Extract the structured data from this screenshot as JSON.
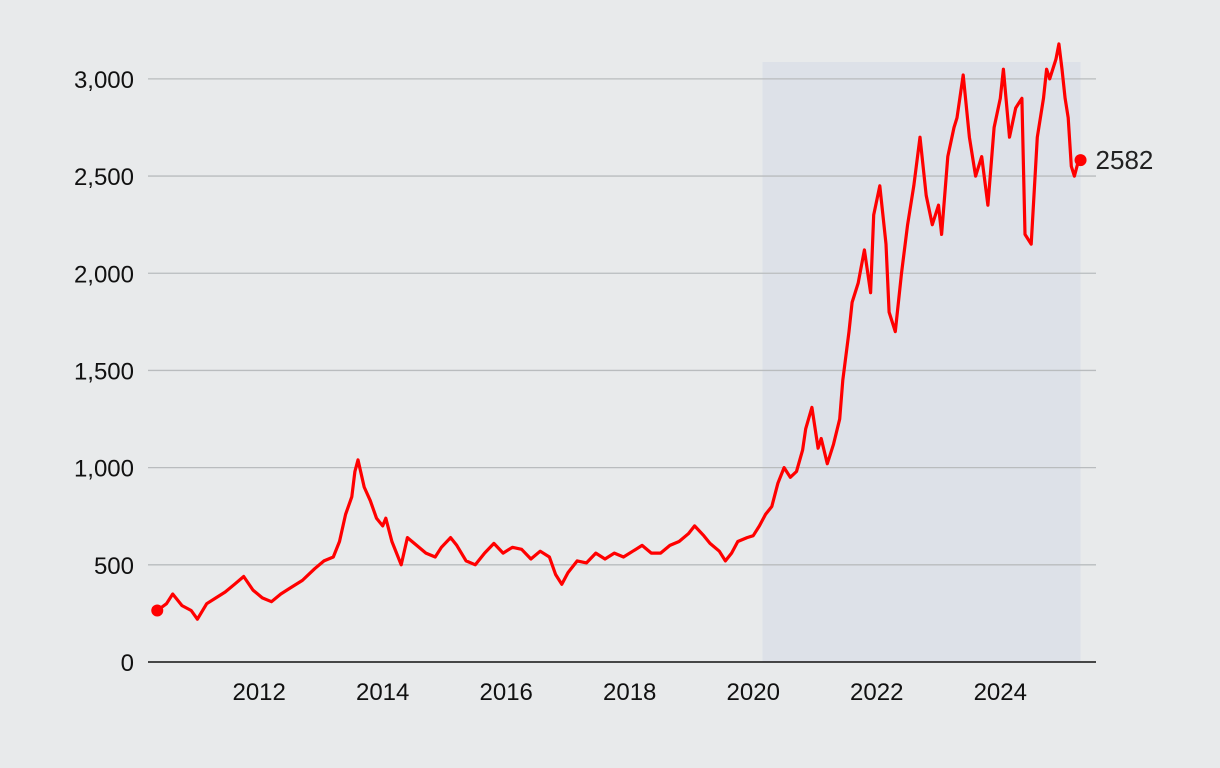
{
  "chart_data": {
    "type": "line",
    "title": "",
    "xlabel": "",
    "ylabel": "",
    "xlim": [
      2010.2,
      2025.55
    ],
    "ylim": [
      0,
      3200
    ],
    "x_ticks": [
      2012,
      2014,
      2016,
      2018,
      2020,
      2022,
      2024
    ],
    "x_tick_labels": [
      "2012",
      "2014",
      "2016",
      "2018",
      "2020",
      "2022",
      "2024"
    ],
    "y_ticks": [
      0,
      500,
      1000,
      1500,
      2000,
      2500,
      3000
    ],
    "y_tick_labels": [
      "0",
      "500",
      "1,000",
      "1,500",
      "2,000",
      "2,500",
      "3,000"
    ],
    "grid": "horizontal",
    "legend": "none",
    "shaded_region": {
      "x_start": 2020.15,
      "x_end": 2025.3,
      "color": "#dde1e8"
    },
    "colors": {
      "line": "#ff0000",
      "background": "#e8eaeb",
      "grid": "#b9bcbe",
      "axis": "#111111"
    },
    "end_label": "2582",
    "series": [
      {
        "color": "#ff0000",
        "x": [
          2010.35,
          2010.5,
          2010.6,
          2010.75,
          2010.9,
          2011.0,
          2011.15,
          2011.3,
          2011.45,
          2011.6,
          2011.75,
          2011.9,
          2012.05,
          2012.2,
          2012.35,
          2012.5,
          2012.7,
          2012.9,
          2013.05,
          2013.2,
          2013.3,
          2013.4,
          2013.5,
          2013.55,
          2013.6,
          2013.7,
          2013.8,
          2013.9,
          2014.0,
          2014.05,
          2014.15,
          2014.3,
          2014.4,
          2014.55,
          2014.7,
          2014.85,
          2014.95,
          2015.1,
          2015.2,
          2015.35,
          2015.5,
          2015.65,
          2015.8,
          2015.95,
          2016.1,
          2016.25,
          2016.4,
          2016.55,
          2016.7,
          2016.8,
          2016.9,
          2017.0,
          2017.15,
          2017.3,
          2017.45,
          2017.6,
          2017.75,
          2017.9,
          2018.05,
          2018.2,
          2018.35,
          2018.5,
          2018.65,
          2018.8,
          2018.95,
          2019.05,
          2019.2,
          2019.3,
          2019.45,
          2019.55,
          2019.65,
          2019.75,
          2019.9,
          2020.0,
          2020.1,
          2020.2,
          2020.3,
          2020.4,
          2020.5,
          2020.6,
          2020.7,
          2020.8,
          2020.85,
          2020.95,
          2021.05,
          2021.1,
          2021.2,
          2021.3,
          2021.4,
          2021.45,
          2021.55,
          2021.6,
          2021.7,
          2021.8,
          2021.9,
          2021.95,
          2022.05,
          2022.15,
          2022.2,
          2022.3,
          2022.4,
          2022.5,
          2022.6,
          2022.7,
          2022.8,
          2022.9,
          2023.0,
          2023.05,
          2023.15,
          2023.25,
          2023.3,
          2023.4,
          2023.5,
          2023.6,
          2023.7,
          2023.8,
          2023.9,
          2024.0,
          2024.05,
          2024.15,
          2024.25,
          2024.35,
          2024.4,
          2024.5,
          2024.6,
          2024.7,
          2024.75,
          2024.8,
          2024.9,
          2024.95,
          2025.0,
          2025.05,
          2025.1,
          2025.15,
          2025.2,
          2025.25,
          2025.3
        ],
        "values": [
          265,
          300,
          350,
          290,
          265,
          220,
          300,
          330,
          360,
          400,
          440,
          370,
          330,
          310,
          350,
          380,
          420,
          480,
          520,
          540,
          620,
          760,
          850,
          980,
          1040,
          900,
          830,
          740,
          700,
          740,
          620,
          500,
          640,
          600,
          560,
          540,
          590,
          640,
          600,
          520,
          500,
          560,
          610,
          560,
          590,
          580,
          530,
          570,
          540,
          450,
          400,
          460,
          520,
          510,
          560,
          530,
          560,
          540,
          570,
          600,
          560,
          560,
          600,
          620,
          660,
          700,
          650,
          610,
          570,
          520,
          560,
          620,
          640,
          650,
          700,
          760,
          800,
          920,
          1000,
          950,
          980,
          1090,
          1200,
          1310,
          1100,
          1150,
          1020,
          1120,
          1250,
          1450,
          1700,
          1850,
          1950,
          2120,
          1900,
          2300,
          2450,
          2150,
          1800,
          1700,
          2000,
          2250,
          2450,
          2700,
          2400,
          2250,
          2350,
          2200,
          2600,
          2750,
          2800,
          3020,
          2700,
          2500,
          2600,
          2350,
          2750,
          2900,
          3050,
          2700,
          2850,
          2900,
          2200,
          2150,
          2700,
          2900,
          3050,
          3000,
          3100,
          3180,
          3050,
          2900,
          2800,
          2550,
          2500,
          2560,
          2582
        ]
      }
    ]
  }
}
